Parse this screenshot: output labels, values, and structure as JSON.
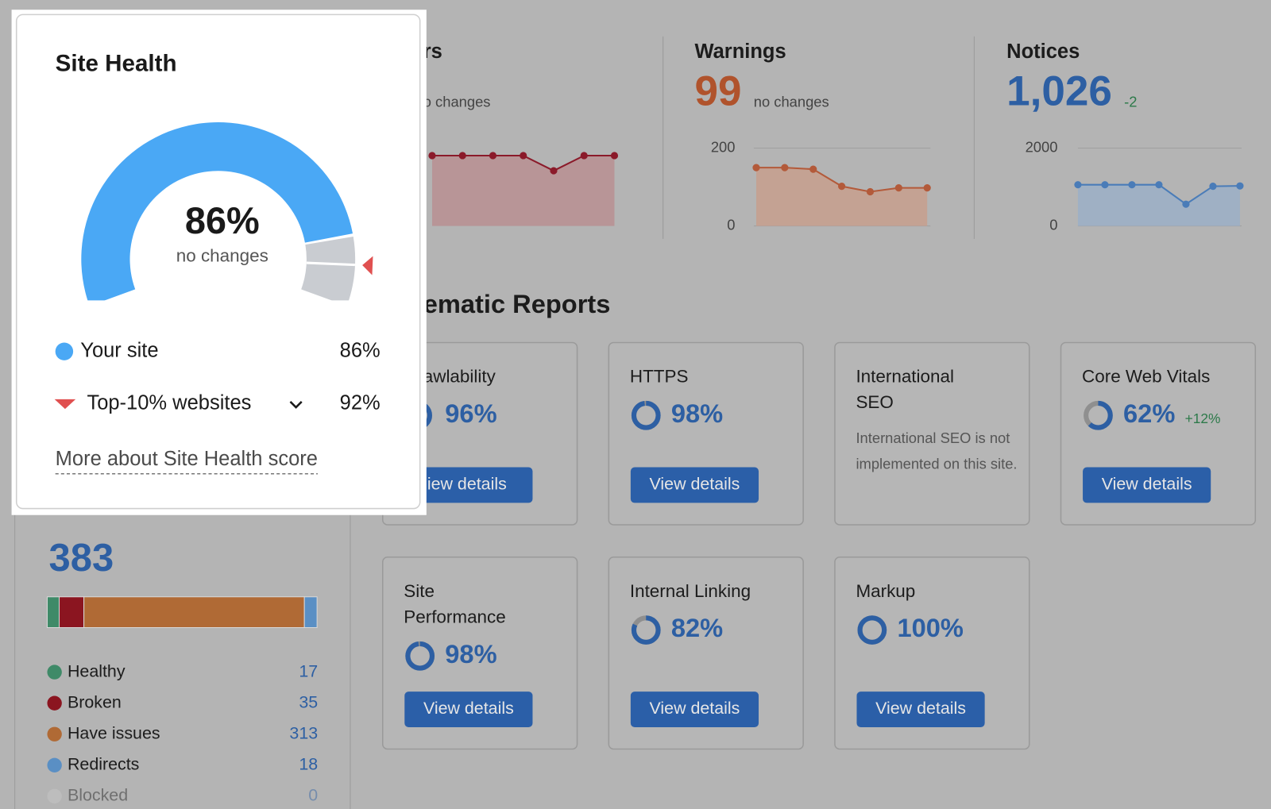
{
  "site_health": {
    "title": "Site Health",
    "score": {
      "value": 86,
      "label": "86%"
    },
    "status": "no changes",
    "legend": [
      {
        "name": "Your site",
        "value": {
          "value": 86,
          "label": "86%"
        }
      },
      {
        "name": "Top-10% websites",
        "value": {
          "value": 92,
          "label": "92%"
        }
      }
    ],
    "link": "More about Site Health score"
  },
  "issues": [
    {
      "title": "rs",
      "status": "o changes",
      "ylim": [
        0,
        200
      ],
      "values": [
        181,
        181,
        181,
        181,
        142,
        181,
        181
      ],
      "color": "#8b1a2a"
    },
    {
      "title": "Warnings",
      "count": 99,
      "status": "no changes",
      "ylim": [
        0,
        200
      ],
      "yticks": [
        200,
        0
      ],
      "values": [
        150,
        150,
        146,
        102,
        88,
        98,
        98
      ],
      "color": "#b35a3a"
    },
    {
      "title": "Notices",
      "count": "1,026",
      "change": -2,
      "ylim": [
        0,
        2000
      ],
      "yticks": [
        2000,
        0
      ],
      "values": [
        1060,
        1060,
        1060,
        1060,
        560,
        1020,
        1030
      ],
      "color": "#4a7cb8"
    }
  ],
  "thematic_reports": {
    "title": "ematic Reports",
    "cards": [
      {
        "name": "awlability",
        "score": {
          "value": 96,
          "label": "96%"
        },
        "button": "iew details"
      },
      {
        "name": "HTTPS",
        "score": {
          "value": 98,
          "label": "98%"
        },
        "button": "View details"
      },
      {
        "name": "International SEO",
        "note": "International SEO is not implemented on this site."
      },
      {
        "name": "Core Web Vitals",
        "score": {
          "value": 62,
          "label": "62%"
        },
        "change": "+12%",
        "button": "View details"
      },
      {
        "name": "Site Performance",
        "score": {
          "value": 98,
          "label": "98%"
        },
        "button": "View details"
      },
      {
        "name": "Internal Linking",
        "score": {
          "value": 82,
          "label": "82%"
        },
        "button": "View details"
      },
      {
        "name": "Markup",
        "score": {
          "value": 100,
          "label": "100%"
        },
        "button": "View details"
      }
    ]
  },
  "crawled_pages": {
    "total": 383,
    "breakdown": [
      {
        "name": "Healthy",
        "value": 17,
        "color": "#3f8a68"
      },
      {
        "name": "Broken",
        "value": 35,
        "color": "#8b1520"
      },
      {
        "name": "Have issues",
        "value": 313,
        "color": "#b06a35"
      },
      {
        "name": "Redirects",
        "value": 18,
        "color": "#5a8fc4"
      },
      {
        "name": "Blocked",
        "value": 0,
        "color": "#c8c8c8"
      }
    ]
  }
}
